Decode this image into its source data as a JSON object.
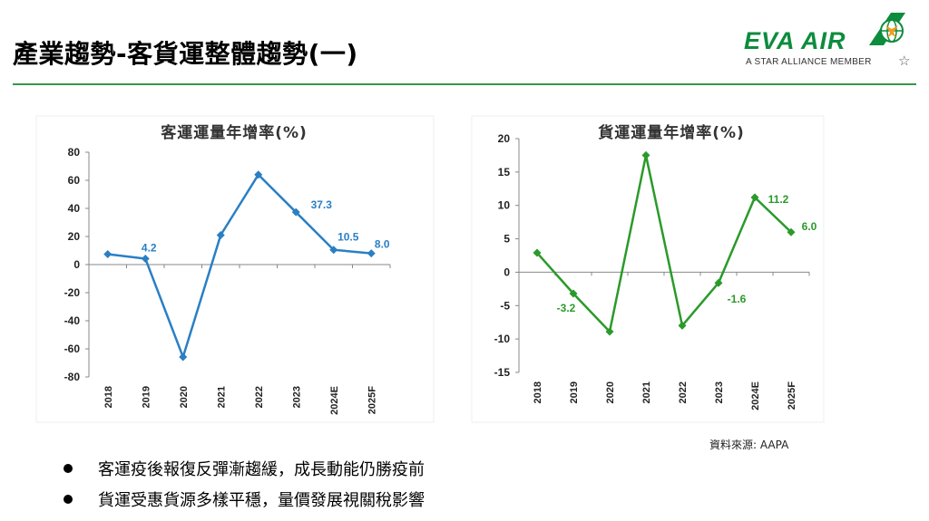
{
  "page": {
    "title": "產業趨勢-客貨運整體趨勢(一)"
  },
  "logo": {
    "name": "EVA AIR",
    "tagline": "A STAR ALLIANCE MEMBER"
  },
  "chart_data": [
    {
      "type": "line",
      "title": "客運運量年增率(%)",
      "categories": [
        "2018",
        "2019",
        "2020",
        "2021",
        "2022",
        "2023",
        "2024E",
        "2025F"
      ],
      "values": [
        7.4,
        4.2,
        -65.8,
        21.0,
        64.0,
        37.3,
        10.5,
        8.0
      ],
      "labels": [
        "",
        "4.2",
        "",
        "",
        "",
        "37.3",
        "10.5",
        "8.0"
      ],
      "ylim": [
        -80,
        80
      ],
      "yticks": [
        -80,
        -60,
        -40,
        -20,
        0,
        20,
        40,
        60,
        80
      ],
      "color": "#2a7fc4",
      "grid": false
    },
    {
      "type": "line",
      "title": "貨運運量年增率(%)",
      "categories": [
        "2018",
        "2019",
        "2020",
        "2021",
        "2022",
        "2023",
        "2024E",
        "2025F"
      ],
      "values": [
        2.9,
        -3.2,
        -8.9,
        17.5,
        -8.0,
        -1.6,
        11.2,
        6.0
      ],
      "labels": [
        "",
        "-3.2",
        "",
        "",
        "",
        "-1.6",
        "11.2",
        "6.0"
      ],
      "ylim": [
        -15,
        20
      ],
      "yticks": [
        -15,
        -10,
        -5,
        0,
        5,
        10,
        15,
        20
      ],
      "color": "#2a9a2a",
      "grid": false
    }
  ],
  "source": "資料來源: AAPA",
  "bullets": [
    "客運疫後報復反彈漸趨緩，成長動能仍勝疫前",
    "貨運受惠貨源多樣平穩，量價發展視關稅影響"
  ]
}
